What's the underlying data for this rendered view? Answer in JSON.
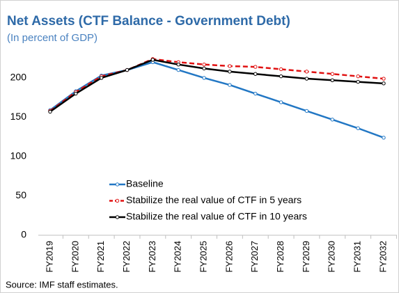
{
  "chart_data": {
    "type": "line",
    "title": "Net Assets (CTF Balance - Government Debt)",
    "subtitle": "(In percent of GDP)",
    "source": "Source: IMF staff estimates.",
    "categories": [
      "FY2019",
      "FY2020",
      "FY2021",
      "FY2022",
      "FY2023",
      "FY2024",
      "FY2025",
      "FY2026",
      "FY2027",
      "FY2028",
      "FY2029",
      "FY2030",
      "FY2031",
      "FY2032"
    ],
    "series": [
      {
        "name": "Baseline",
        "color": "#2277c4",
        "dash": false,
        "values": [
          159,
          183,
          203,
          210,
          220,
          210,
          200,
          191,
          180,
          169,
          158,
          147,
          136,
          124
        ]
      },
      {
        "name": "Stabilize the real value of CTF in 5 years",
        "color": "#e01010",
        "dash": true,
        "values": [
          158,
          182,
          202,
          210,
          224,
          220,
          217,
          215,
          214,
          211,
          208,
          205,
          202,
          199
        ]
      },
      {
        "name": "Stabilize the real value of CTF in 10 years",
        "color": "#000000",
        "dash": false,
        "values": [
          157,
          180,
          200,
          210,
          223,
          217,
          212,
          208,
          205,
          202,
          199,
          197,
          195,
          193
        ]
      }
    ],
    "ylim": [
      0,
      230
    ],
    "yticks": [
      0,
      50,
      100,
      150,
      200
    ],
    "grid": false,
    "legend": "lower left"
  }
}
